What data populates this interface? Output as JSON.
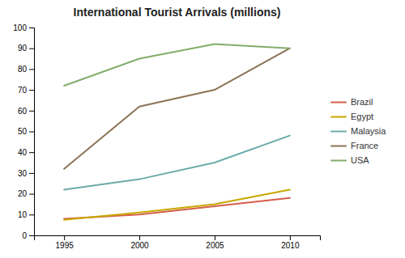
{
  "chart_data": {
    "type": "line",
    "title": "International Tourist Arrivals (millions)",
    "x": [
      1995,
      2000,
      2005,
      2010
    ],
    "series": [
      {
        "name": "Brazil",
        "color": "#d45f4a",
        "values": [
          8,
          10,
          14,
          18
        ]
      },
      {
        "name": "Egypt",
        "color": "#c8a800",
        "values": [
          7.5,
          11,
          15,
          22
        ]
      },
      {
        "name": "Malaysia",
        "color": "#6aabaa",
        "values": [
          22,
          27,
          35,
          48
        ]
      },
      {
        "name": "France",
        "color": "#8b7355",
        "values": [
          32,
          62,
          70,
          90
        ]
      },
      {
        "name": "USA",
        "color": "#82ae6a",
        "values": [
          72,
          85,
          92,
          90
        ]
      }
    ],
    "xlim": [
      1993,
      2012
    ],
    "xticks": [
      1995,
      2000,
      2005,
      2010
    ],
    "ylim": [
      0,
      100
    ],
    "yticks": [
      0,
      10,
      20,
      30,
      40,
      50,
      60,
      70,
      80,
      90,
      100
    ],
    "grid": false,
    "legend": "right"
  }
}
